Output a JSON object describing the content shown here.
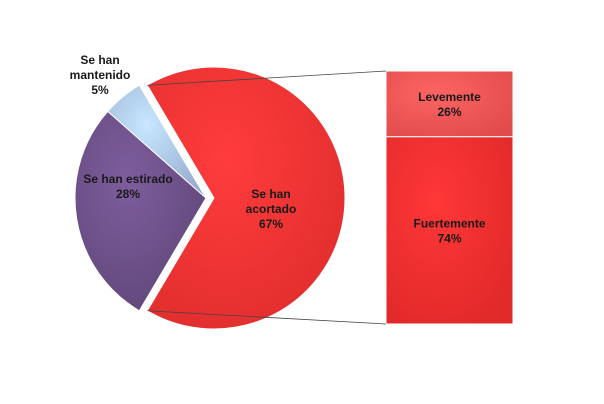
{
  "chart_data": [
    {
      "type": "pie",
      "title": "",
      "slices": [
        {
          "label_lines": [
            "Se han",
            "acortado"
          ],
          "value": 67,
          "value_label": "67%",
          "color": "#ff3333"
        },
        {
          "label_lines": [
            "Se han estirado"
          ],
          "value": 28,
          "value_label": "28%",
          "color": "#6b4f86"
        },
        {
          "label_lines": [
            "Se han",
            "mantenido"
          ],
          "value": 5,
          "value_label": "5%",
          "color": "#a9c4ea"
        }
      ],
      "exploded_slice": "Se han acortado"
    },
    {
      "type": "bar",
      "stacked": true,
      "breakdown_of": "Se han acortado",
      "segments": [
        {
          "label": "Levemente",
          "value": 26,
          "value_label": "26%",
          "color": "#ff5555"
        },
        {
          "label": "Fuertemente",
          "value": 74,
          "value_label": "74%",
          "color": "#ff2f2f"
        }
      ]
    }
  ]
}
